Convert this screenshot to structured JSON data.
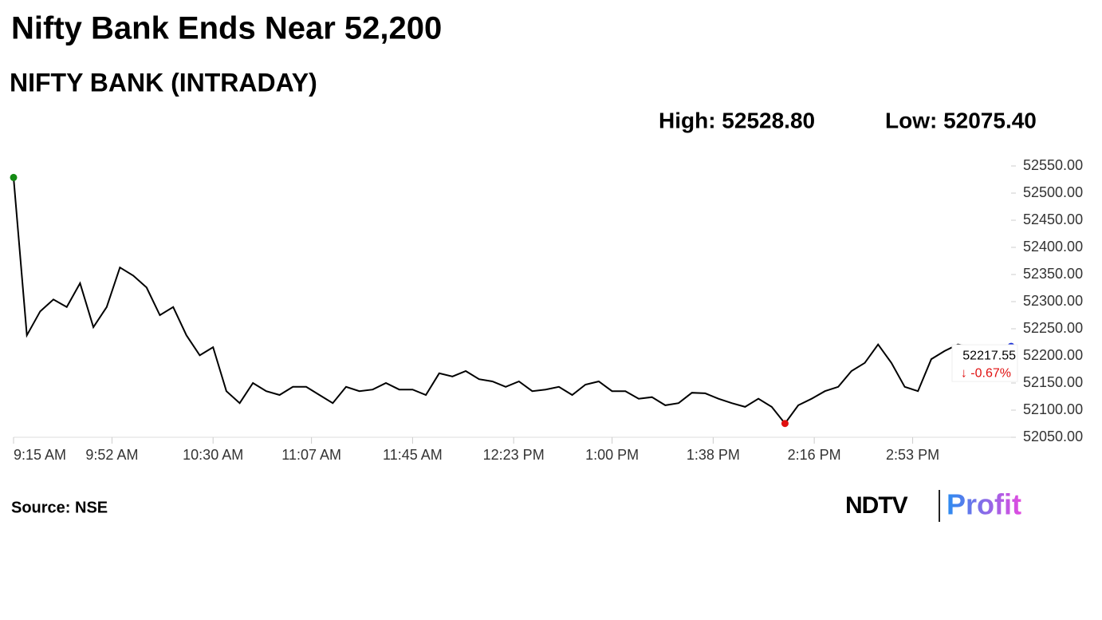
{
  "chart_data": {
    "type": "line",
    "title": "Nifty Bank Ends Near 52,200",
    "subtitle": "NIFTY BANK (INTRADAY)",
    "high_label": "High: 52528.80",
    "low_label": "Low: 52075.40",
    "last_label": "52217.55",
    "change_label": "↓ -0.67%",
    "source": "Source: NSE",
    "logo_ndtv": "NDTV",
    "logo_profit": "Profit",
    "x": [
      "9:15 AM",
      "9:20 AM",
      "9:25 AM",
      "9:30 AM",
      "9:35 AM",
      "9:40 AM",
      "9:45 AM",
      "9:50 AM",
      "9:55 AM",
      "10:00 AM",
      "10:05 AM",
      "10:10 AM",
      "10:15 AM",
      "10:20 AM",
      "10:25 AM",
      "10:30 AM",
      "10:35 AM",
      "10:40 AM",
      "10:45 AM",
      "10:50 AM",
      "10:55 AM",
      "11:00 AM",
      "11:05 AM",
      "11:10 AM",
      "11:15 AM",
      "11:20 AM",
      "11:25 AM",
      "11:30 AM",
      "11:35 AM",
      "11:40 AM",
      "11:45 AM",
      "11:50 AM",
      "11:55 AM",
      "12:00 PM",
      "12:05 PM",
      "12:10 PM",
      "12:15 PM",
      "12:20 PM",
      "12:25 PM",
      "12:30 PM",
      "12:35 PM",
      "12:40 PM",
      "12:45 PM",
      "12:50 PM",
      "12:55 PM",
      "1:00 PM",
      "1:05 PM",
      "1:10 PM",
      "1:15 PM",
      "1:20 PM",
      "1:25 PM",
      "1:30 PM",
      "1:35 PM",
      "1:40 PM",
      "1:45 PM",
      "1:50 PM",
      "1:55 PM",
      "2:00 PM",
      "2:05 PM",
      "2:10 PM",
      "2:15 PM",
      "2:20 PM",
      "2:25 PM",
      "2:30 PM",
      "2:35 PM",
      "2:40 PM",
      "2:45 PM",
      "2:50 PM",
      "2:55 PM",
      "3:00 PM",
      "3:05 PM",
      "3:10 PM",
      "3:15 PM",
      "3:20 PM",
      "3:25 PM",
      "3:30 PM"
    ],
    "series": [
      {
        "name": "NIFTY BANK",
        "color": "#000000",
        "values": [
          52528.8,
          52238,
          52282,
          52304,
          52290,
          52334,
          52253,
          52290,
          52363,
          52348,
          52326,
          52275,
          52290,
          52238,
          52201,
          52216,
          52135,
          52113,
          52150,
          52135,
          52128,
          52143,
          52143,
          52128,
          52113,
          52143,
          52135,
          52138,
          52150,
          52138,
          52138,
          52128,
          52168,
          52162,
          52172,
          52157,
          52153,
          52143,
          52153,
          52135,
          52138,
          52143,
          52128,
          52147,
          52153,
          52135,
          52135,
          52121,
          52124,
          52109,
          52113,
          52132,
          52131,
          52121,
          52113,
          52106,
          52121,
          52106,
          52075.4,
          52109,
          52121,
          52135,
          52143,
          52172,
          52187,
          52221,
          52187,
          52143,
          52135,
          52194,
          52209,
          52221,
          52216,
          52216,
          52213,
          52217.55
        ]
      }
    ],
    "marker_colors": {
      "high": "#138a13",
      "low": "#e01010",
      "last": "#1a2fd6"
    },
    "xlim": [
      "9:15 AM",
      "3:30 PM"
    ],
    "xticks": [
      "9:15 AM",
      "9:52 AM",
      "10:30 AM",
      "11:07 AM",
      "11:45 AM",
      "12:23 PM",
      "1:00 PM",
      "1:38 PM",
      "2:16 PM",
      "2:53 PM"
    ],
    "ylim": [
      52050,
      52550
    ],
    "yticks": [
      {
        "value": 52050,
        "label": "52050.00"
      },
      {
        "value": 52100,
        "label": "52100.00"
      },
      {
        "value": 52150,
        "label": "52150.00"
      },
      {
        "value": 52200,
        "label": "52200.00"
      },
      {
        "value": 52250,
        "label": "52250.00"
      },
      {
        "value": 52300,
        "label": "52300.00"
      },
      {
        "value": 52350,
        "label": "52350.00"
      },
      {
        "value": 52400,
        "label": "52400.00"
      },
      {
        "value": 52450,
        "label": "52450.00"
      },
      {
        "value": 52500,
        "label": "52500.00"
      },
      {
        "value": 52550,
        "label": "52550.00"
      }
    ],
    "grid": false
  }
}
